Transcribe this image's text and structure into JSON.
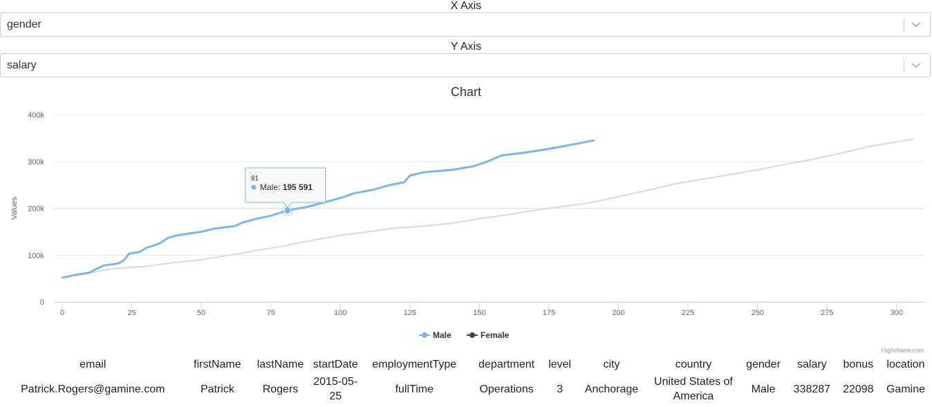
{
  "controls": {
    "x_axis_label": "X Axis",
    "x_axis_value": "gender",
    "y_axis_label": "Y Axis",
    "y_axis_value": "salary"
  },
  "chart_data": {
    "type": "line",
    "title": "Chart",
    "xlabel": "",
    "ylabel": "Values",
    "xlim": [
      0,
      310
    ],
    "ylim": [
      0,
      400000
    ],
    "x_ticks": [
      0,
      25,
      50,
      75,
      100,
      125,
      150,
      175,
      200,
      225,
      250,
      275,
      300
    ],
    "y_ticks": [
      0,
      100000,
      200000,
      300000,
      400000
    ],
    "y_tick_labels": [
      "0",
      "100k",
      "200k",
      "300k",
      "400k"
    ],
    "grid": true,
    "legend": "bottom-center",
    "credits": "Highcharts.com",
    "tooltip": {
      "x": 81,
      "series": "Male",
      "value": 195591,
      "value_label": "195 591",
      "x_label": "81"
    },
    "series": [
      {
        "name": "Male",
        "color": "#7cb5ec",
        "points": [
          [
            0,
            52000
          ],
          [
            5,
            58000
          ],
          [
            10,
            63000
          ],
          [
            12,
            70000
          ],
          [
            15,
            78000
          ],
          [
            20,
            82000
          ],
          [
            22,
            88000
          ],
          [
            24,
            103000
          ],
          [
            28,
            107000
          ],
          [
            30,
            115000
          ],
          [
            35,
            125000
          ],
          [
            38,
            137000
          ],
          [
            42,
            143000
          ],
          [
            50,
            150000
          ],
          [
            55,
            157000
          ],
          [
            62,
            162000
          ],
          [
            65,
            170000
          ],
          [
            70,
            178000
          ],
          [
            75,
            184000
          ],
          [
            81,
            195591
          ],
          [
            88,
            203000
          ],
          [
            95,
            214000
          ],
          [
            100,
            222000
          ],
          [
            105,
            232000
          ],
          [
            112,
            240000
          ],
          [
            118,
            250000
          ],
          [
            123,
            256000
          ],
          [
            125,
            270000
          ],
          [
            130,
            277000
          ],
          [
            140,
            282000
          ],
          [
            148,
            290000
          ],
          [
            152,
            298000
          ],
          [
            158,
            313000
          ],
          [
            165,
            318000
          ],
          [
            175,
            327000
          ],
          [
            185,
            338000
          ],
          [
            191,
            345000
          ]
        ]
      },
      {
        "name": "Female",
        "color": "#434348",
        "points": [
          [
            0,
            52000
          ],
          [
            10,
            62000
          ],
          [
            15,
            68000
          ],
          [
            20,
            72000
          ],
          [
            30,
            76000
          ],
          [
            35,
            80000
          ],
          [
            40,
            84000
          ],
          [
            50,
            90000
          ],
          [
            60,
            100000
          ],
          [
            70,
            110000
          ],
          [
            80,
            120000
          ],
          [
            90,
            132000
          ],
          [
            100,
            142000
          ],
          [
            110,
            150000
          ],
          [
            120,
            158000
          ],
          [
            130,
            162000
          ],
          [
            140,
            168000
          ],
          [
            150,
            178000
          ],
          [
            160,
            186000
          ],
          [
            170,
            196000
          ],
          [
            180,
            204000
          ],
          [
            190,
            212000
          ],
          [
            200,
            225000
          ],
          [
            210,
            238000
          ],
          [
            220,
            252000
          ],
          [
            230,
            262000
          ],
          [
            240,
            272000
          ],
          [
            250,
            282000
          ],
          [
            260,
            294000
          ],
          [
            270,
            305000
          ],
          [
            280,
            318000
          ],
          [
            290,
            332000
          ],
          [
            300,
            342000
          ],
          [
            306,
            348000
          ]
        ]
      }
    ]
  },
  "table": {
    "headers": [
      "email",
      "firstName",
      "lastName",
      "startDate",
      "employmentType",
      "department",
      "level",
      "city",
      "country",
      "gender",
      "salary",
      "bonus",
      "location"
    ],
    "rows": [
      [
        "Patrick.Rogers@gamine.com",
        "Patrick",
        "Rogers",
        "2015-05-25",
        "fullTime",
        "Operations",
        "3",
        "Anchorage",
        "United States of America",
        "Male",
        "338287",
        "22098",
        "Gamine"
      ]
    ]
  }
}
